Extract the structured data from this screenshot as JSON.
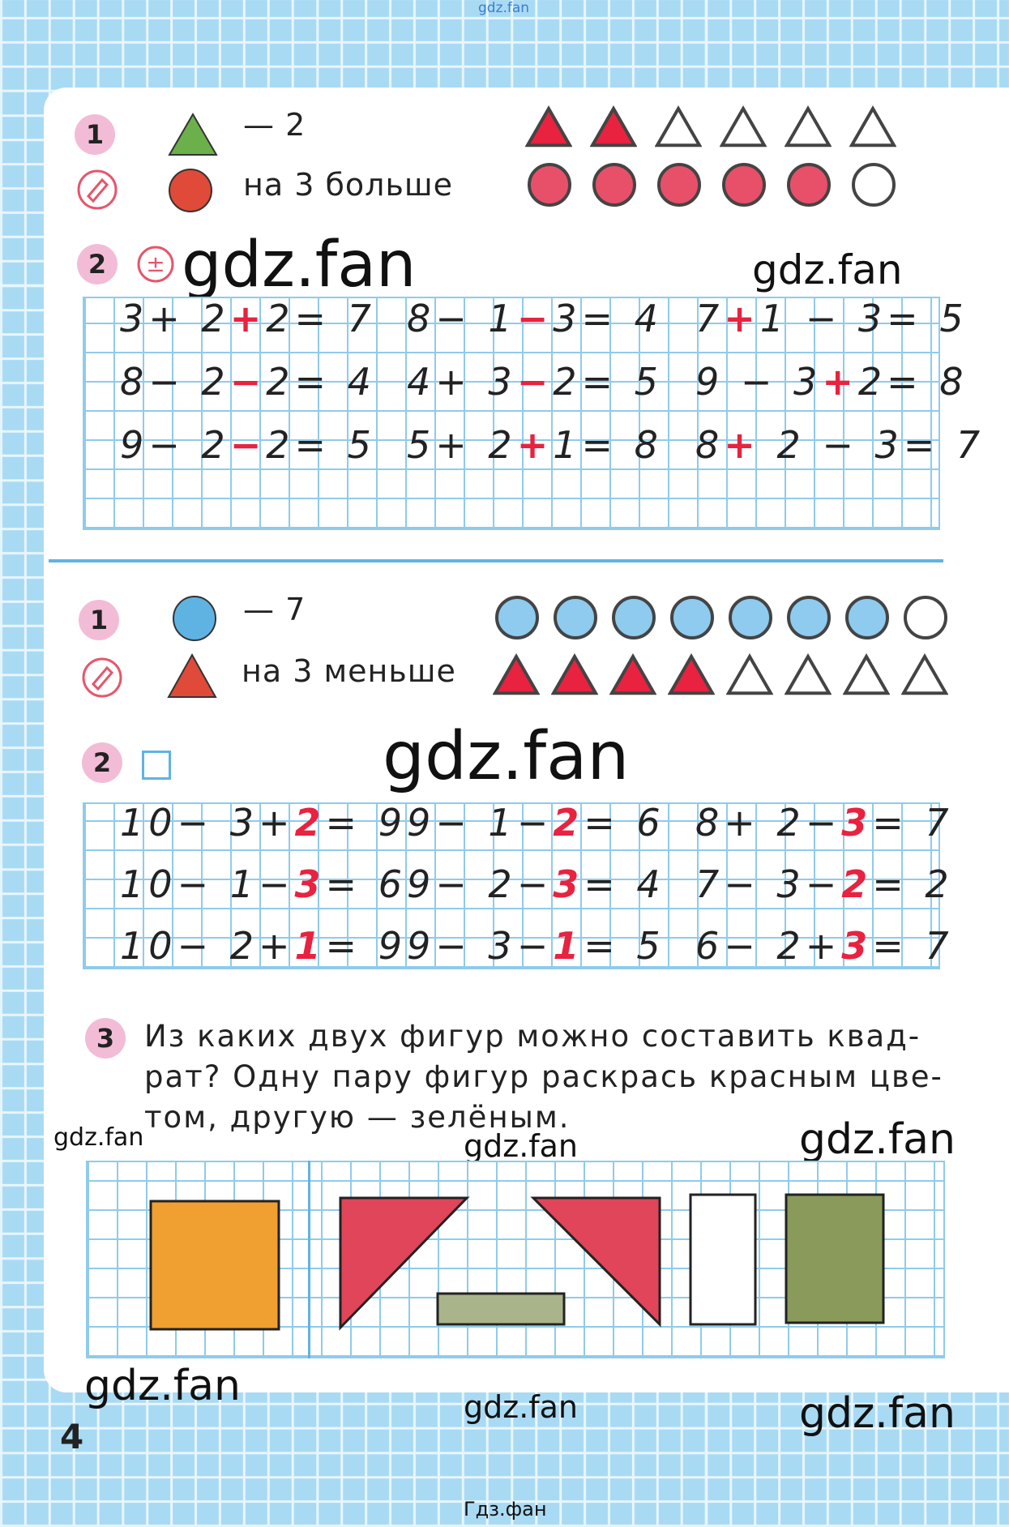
{
  "top_watermark": "gdz.fan",
  "page_number": "4",
  "bottom_caption": "Гдз.фан",
  "colors": {
    "red": "#e8223f",
    "pencil_red": "#e4576c",
    "blue": "#5fb3e3",
    "green": "#6bb04a",
    "orange": "#f0a030",
    "olive": "#8a9a5a",
    "badge": "#f3bcd6"
  },
  "section_a": {
    "task1": {
      "number": "1",
      "icon_top": "green-triangle",
      "icon_bottom": "red-circle",
      "line1": "— 2",
      "line2": "на  3  больше",
      "triangles": {
        "total": 6,
        "colored": 2
      },
      "circles": {
        "total": 6,
        "colored": 5
      }
    },
    "task2": {
      "number": "2",
      "icon": "plus-minus-icon",
      "equations": [
        {
          "a": "3+ 2",
          "r": "+",
          "b": "2= 7"
        },
        {
          "a": "8− 1",
          "r": "−",
          "b": "3= 4"
        },
        {
          "a": "7",
          "r": "+",
          "b": "1 − 3= 5"
        },
        {
          "a": "8− 2",
          "r": "−",
          "b": "2= 4"
        },
        {
          "a": "4+ 3",
          "r": "−",
          "b": "2= 5"
        },
        {
          "a": "9 − 3",
          "r": "+",
          "b": "2= 8"
        },
        {
          "a": "9− 2",
          "r": "−",
          "b": "2= 5"
        },
        {
          "a": "5+ 2",
          "r": "+",
          "b": "1= 8"
        },
        {
          "a": "8",
          "r": "+",
          "b": " 2 − 3= 7"
        }
      ]
    }
  },
  "section_b": {
    "task1": {
      "number": "1",
      "icon_top": "blue-circle",
      "icon_bottom": "red-triangle",
      "line1": "— 7",
      "line2": "на  3  меньше",
      "circles": {
        "total": 8,
        "colored": 7
      },
      "triangles": {
        "total": 8,
        "colored": 4
      }
    },
    "task2": {
      "number": "2",
      "icon": "square-icon",
      "equations": [
        {
          "a": "10− 3+",
          "r": "2",
          "b": "= 9"
        },
        {
          "a": "9− 1−",
          "r": "2",
          "b": "= 6"
        },
        {
          "a": "8+ 2−",
          "r": "3",
          "b": "= 7"
        },
        {
          "a": "10− 1−",
          "r": "3",
          "b": "= 6"
        },
        {
          "a": "9− 2−",
          "r": "3",
          "b": "= 4"
        },
        {
          "a": "7− 3−",
          "r": "2",
          "b": "= 2"
        },
        {
          "a": "10− 2+",
          "r": "1",
          "b": "= 9"
        },
        {
          "a": "9− 3−",
          "r": "1",
          "b": "= 5"
        },
        {
          "a": "6− 2+",
          "r": "3",
          "b": "= 7"
        }
      ]
    },
    "task3": {
      "number": "3",
      "lines": [
        "Из каких двух фигур можно составить квад-",
        "рат? Одну пару фигур раскрась красным цве-",
        "том, другую — зелёным."
      ]
    }
  },
  "watermarks": [
    "gdz.fan",
    "gdz.fan",
    "gdz.fan",
    "gdz.fan",
    "gdz.fan",
    "gdz.fan",
    "gdz.fan",
    "gdz.fan",
    "gdz.fan"
  ]
}
